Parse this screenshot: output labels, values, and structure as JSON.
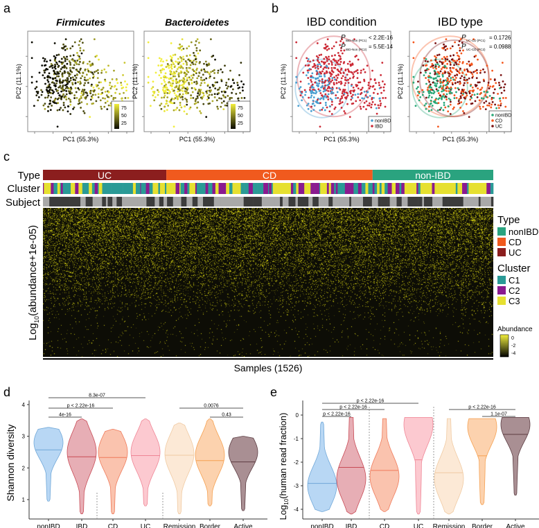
{
  "panels": {
    "a": "a",
    "b": "b",
    "c": "c",
    "d": "d",
    "e": "e"
  },
  "colors": {
    "nonIBD": "#2aa37f",
    "CD": "#f05a1e",
    "UC": "#8b1e1e",
    "C1": "#2a9a96",
    "C2": "#8a1a8f",
    "C3": "#e6e030",
    "heat_low": "#0b0b05",
    "heat_high": "#f2f03a",
    "pca_nonIBD": "#4a9fd0",
    "pca_IBD": "#cc2a36",
    "pca_CD": "#f5561c",
    "pca_UC": "#7a1010",
    "pca_nonIBD_type": "#2aa878"
  },
  "chart_data": [
    {
      "type": "scatter",
      "panel": "a",
      "title": "Firmicutes",
      "xlabel": "PC1 (55.3%)",
      "ylabel": "PC2 (11.1%)",
      "colorbar": {
        "ticks": [
          "75",
          "50",
          "25"
        ]
      }
    },
    {
      "type": "scatter",
      "panel": "a",
      "title": "Bacteroidetes",
      "xlabel": "PC1 (55.3%)",
      "ylabel": "PC2 (11.1%)",
      "colorbar": {
        "ticks": [
          "75",
          "50",
          "25"
        ]
      }
    },
    {
      "type": "scatter",
      "panel": "b",
      "title": "IBD condition",
      "xlabel": "PC1 (55.3%)",
      "ylabel": "PC2 (11.1%)",
      "legend": [
        "nonIBD",
        "IBD"
      ],
      "legend_position": "bottom-right",
      "annotations": [
        {
          "p": "P",
          "sub": "IBD-Non (PC1)",
          "value": "< 2.2E-16"
        },
        {
          "p": "P",
          "sub": "IBD-Non (PC2)",
          "value": "= 5.5E-14"
        }
      ]
    },
    {
      "type": "scatter",
      "panel": "b",
      "title": "IBD type",
      "xlabel": "PC1 (55.3%)",
      "ylabel": "PC2 (11.1%)",
      "legend": [
        "nonIBD",
        "CD",
        "UC"
      ],
      "legend_position": "bottom-right",
      "annotations": [
        {
          "p": "P",
          "sub": "UC-CD (PC1)",
          "value": "= 0.1726"
        },
        {
          "p": "P",
          "sub": "UC-CD (PC2)",
          "value": "= 0.0988"
        }
      ]
    },
    {
      "type": "heatmap",
      "panel": "c",
      "xlabel": "Samples (1526)",
      "ylabel_main": "Log",
      "ylabel_sub": "10",
      "ylabel_rest": "(abundance+1e-05)",
      "row_labels": [
        "Type",
        "Cluster",
        "Subject"
      ],
      "type_segments": [
        {
          "label": "UC",
          "fraction": 0.274
        },
        {
          "label": "CD",
          "fraction": 0.458
        },
        {
          "label": "non-IBD",
          "fraction": 0.268
        }
      ],
      "legend": {
        "type_title": "Type",
        "types": [
          "nonIBD",
          "CD",
          "UC"
        ],
        "cluster_title": "Cluster",
        "clusters": [
          "C1",
          "C2",
          "C3"
        ],
        "abundance_title": "Abundance",
        "abundance_ticks": [
          "0",
          "-2",
          "-4"
        ]
      }
    },
    {
      "type": "violin",
      "panel": "d",
      "ylabel": "Shannon diversity",
      "ylim": [
        0.6,
        4.1
      ],
      "yticks": [
        "1",
        "2",
        "3",
        "4"
      ],
      "categories": [
        "nonIBD",
        "IBD",
        "CD",
        "UC",
        "Remission",
        "Border",
        "Active"
      ],
      "median": [
        2.57,
        2.35,
        2.33,
        2.39,
        2.4,
        2.23,
        2.19
      ],
      "min": [
        0.95,
        0.55,
        0.55,
        0.8,
        0.55,
        0.8,
        0.65
      ],
      "max": [
        3.28,
        3.55,
        3.22,
        3.55,
        3.42,
        3.55,
        3.0
      ],
      "mode": [
        2.8,
        2.5,
        2.5,
        2.5,
        2.45,
        2.4,
        2.5
      ],
      "comparisons": [
        {
          "from": 0,
          "to": 1,
          "label": "4e-16",
          "level": 1
        },
        {
          "from": 0,
          "to": 2,
          "label": "p < 2.22e-16",
          "level": 2
        },
        {
          "from": 0,
          "to": 3,
          "label": "8.3e-07",
          "level": 3
        },
        {
          "from": 4,
          "to": 6,
          "label": "0.0076",
          "level": 2
        },
        {
          "from": 5,
          "to": 6,
          "label": "0.43",
          "level": 1
        }
      ]
    },
    {
      "type": "violin",
      "panel": "e",
      "ylabel_main": "Log",
      "ylabel_sub": "10",
      "ylabel_rest": "(human read fraction)",
      "ylim": [
        -4.3,
        0.7
      ],
      "yticks": [
        "0",
        "-1",
        "-2",
        "-3",
        "-4"
      ],
      "categories": [
        "nonIBD",
        "IBD",
        "CD",
        "UC",
        "Remission",
        "Border",
        "Active"
      ],
      "median": [
        -2.9,
        -2.22,
        -2.35,
        -1.9,
        -2.45,
        -1.73,
        -0.82
      ],
      "min": [
        -4.1,
        -4.2,
        -4.1,
        -4.2,
        -4.2,
        -3.8,
        -3.4
      ],
      "max": [
        -0.3,
        -0.1,
        -0.15,
        -0.1,
        -0.15,
        -0.15,
        -0.1
      ],
      "mode": [
        -3.0,
        -2.7,
        -2.6,
        -0.4,
        -2.7,
        -0.5,
        -0.4
      ],
      "comparisons": [
        {
          "from": 0,
          "to": 1,
          "label": "p < 2.22e-16",
          "level": 1
        },
        {
          "from": 0,
          "to": 2,
          "label": "p < 2.22e-16",
          "level": 2
        },
        {
          "from": 0,
          "to": 3,
          "label": "p < 2.22e-16",
          "level": 3
        },
        {
          "from": 4,
          "to": 6,
          "label": "p < 2.22e-16",
          "level": 2
        },
        {
          "from": 5,
          "to": 6,
          "label": "1.1e-07",
          "level": 1
        }
      ]
    }
  ]
}
